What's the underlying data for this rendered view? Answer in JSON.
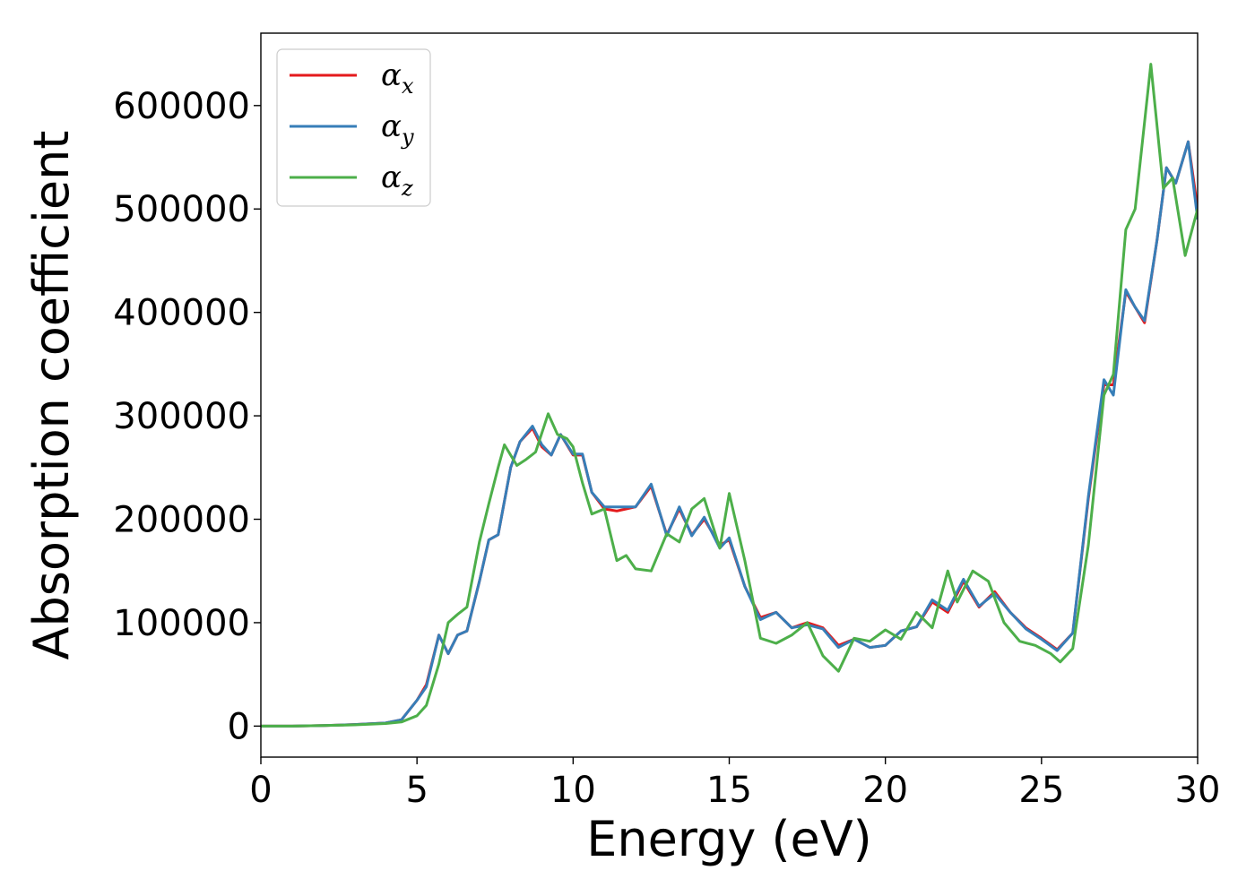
{
  "chart_data": {
    "type": "line",
    "xlabel": "Energy (eV)",
    "ylabel": "Absorption coefficient",
    "xlim": [
      0,
      30
    ],
    "ylim": [
      -30000,
      670000
    ],
    "x_ticks": [
      "0",
      "5",
      "10",
      "15",
      "20",
      "25",
      "30"
    ],
    "y_ticks": [
      "0",
      "100000",
      "200000",
      "300000",
      "400000",
      "500000",
      "600000"
    ],
    "legend_position": "top-left",
    "grid": false,
    "series": [
      {
        "name_main": "α",
        "name_sub": "x",
        "color": "#e41a1c",
        "points": [
          [
            0,
            0
          ],
          [
            1,
            0
          ],
          [
            2,
            500
          ],
          [
            3,
            1500
          ],
          [
            4,
            3000
          ],
          [
            4.5,
            6000
          ],
          [
            5,
            25000
          ],
          [
            5.3,
            40000
          ],
          [
            5.7,
            88000
          ],
          [
            6,
            70000
          ],
          [
            6.3,
            88000
          ],
          [
            6.6,
            92000
          ],
          [
            7,
            140000
          ],
          [
            7.3,
            180000
          ],
          [
            7.6,
            185000
          ],
          [
            8,
            250000
          ],
          [
            8.3,
            275000
          ],
          [
            8.7,
            288000
          ],
          [
            9,
            270000
          ],
          [
            9.3,
            262000
          ],
          [
            9.6,
            282000
          ],
          [
            10,
            262000
          ],
          [
            10.3,
            262000
          ],
          [
            10.6,
            226000
          ],
          [
            11,
            210000
          ],
          [
            11.4,
            208000
          ],
          [
            11.7,
            210000
          ],
          [
            12,
            212000
          ],
          [
            12.5,
            232000
          ],
          [
            13,
            185000
          ],
          [
            13.4,
            210000
          ],
          [
            13.8,
            185000
          ],
          [
            14.2,
            200000
          ],
          [
            14.7,
            175000
          ],
          [
            15,
            180000
          ],
          [
            15.5,
            135000
          ],
          [
            16,
            105000
          ],
          [
            16.5,
            110000
          ],
          [
            17,
            95000
          ],
          [
            17.5,
            100000
          ],
          [
            18,
            95000
          ],
          [
            18.5,
            78000
          ],
          [
            19,
            84000
          ],
          [
            19.5,
            76000
          ],
          [
            20,
            78000
          ],
          [
            20.5,
            92000
          ],
          [
            21,
            96000
          ],
          [
            21.5,
            120000
          ],
          [
            22,
            110000
          ],
          [
            22.5,
            140000
          ],
          [
            23,
            115000
          ],
          [
            23.5,
            130000
          ],
          [
            24,
            110000
          ],
          [
            24.5,
            95000
          ],
          [
            25,
            85000
          ],
          [
            25.5,
            74000
          ],
          [
            26,
            90000
          ],
          [
            26.5,
            220000
          ],
          [
            27,
            330000
          ],
          [
            27.3,
            330000
          ],
          [
            27.7,
            420000
          ],
          [
            28,
            405000
          ],
          [
            28.3,
            390000
          ],
          [
            28.7,
            470000
          ],
          [
            29,
            540000
          ],
          [
            29.3,
            525000
          ],
          [
            29.7,
            565000
          ],
          [
            30,
            500000
          ]
        ]
      },
      {
        "name_main": "α",
        "name_sub": "y",
        "color": "#377eb8",
        "points": [
          [
            0,
            0
          ],
          [
            1,
            0
          ],
          [
            2,
            500
          ],
          [
            3,
            1500
          ],
          [
            4,
            3000
          ],
          [
            4.5,
            6000
          ],
          [
            5,
            25000
          ],
          [
            5.3,
            38000
          ],
          [
            5.7,
            88000
          ],
          [
            6,
            70000
          ],
          [
            6.3,
            88000
          ],
          [
            6.6,
            92000
          ],
          [
            7,
            140000
          ],
          [
            7.3,
            180000
          ],
          [
            7.6,
            185000
          ],
          [
            8,
            250000
          ],
          [
            8.3,
            275000
          ],
          [
            8.7,
            290000
          ],
          [
            9,
            272000
          ],
          [
            9.3,
            262000
          ],
          [
            9.6,
            282000
          ],
          [
            10,
            263000
          ],
          [
            10.3,
            263000
          ],
          [
            10.6,
            226000
          ],
          [
            11,
            212000
          ],
          [
            11.4,
            212000
          ],
          [
            11.7,
            212000
          ],
          [
            12,
            212000
          ],
          [
            12.5,
            234000
          ],
          [
            13,
            184000
          ],
          [
            13.4,
            212000
          ],
          [
            13.8,
            184000
          ],
          [
            14.2,
            202000
          ],
          [
            14.7,
            172000
          ],
          [
            15,
            182000
          ],
          [
            15.5,
            135000
          ],
          [
            16,
            103000
          ],
          [
            16.5,
            110000
          ],
          [
            17,
            95000
          ],
          [
            17.5,
            98000
          ],
          [
            18,
            94000
          ],
          [
            18.5,
            76000
          ],
          [
            19,
            84000
          ],
          [
            19.5,
            76000
          ],
          [
            20,
            78000
          ],
          [
            20.5,
            92000
          ],
          [
            21,
            96000
          ],
          [
            21.5,
            122000
          ],
          [
            22,
            112000
          ],
          [
            22.5,
            142000
          ],
          [
            23,
            116000
          ],
          [
            23.5,
            128000
          ],
          [
            24,
            110000
          ],
          [
            24.5,
            94000
          ],
          [
            25,
            84000
          ],
          [
            25.5,
            73000
          ],
          [
            26,
            90000
          ],
          [
            26.5,
            222000
          ],
          [
            27,
            335000
          ],
          [
            27.3,
            320000
          ],
          [
            27.7,
            422000
          ],
          [
            28,
            405000
          ],
          [
            28.3,
            392000
          ],
          [
            28.7,
            470000
          ],
          [
            29,
            540000
          ],
          [
            29.3,
            525000
          ],
          [
            29.7,
            565000
          ],
          [
            30,
            490000
          ]
        ]
      },
      {
        "name_main": "α",
        "name_sub": "z",
        "color": "#4daf4a",
        "points": [
          [
            0,
            0
          ],
          [
            1,
            0
          ],
          [
            2,
            500
          ],
          [
            3,
            1200
          ],
          [
            4,
            2500
          ],
          [
            4.5,
            4000
          ],
          [
            5,
            10000
          ],
          [
            5.3,
            20000
          ],
          [
            5.7,
            60000
          ],
          [
            6,
            100000
          ],
          [
            6.3,
            108000
          ],
          [
            6.6,
            115000
          ],
          [
            7,
            178000
          ],
          [
            7.3,
            215000
          ],
          [
            7.6,
            250000
          ],
          [
            7.8,
            272000
          ],
          [
            8.2,
            252000
          ],
          [
            8.5,
            258000
          ],
          [
            8.8,
            265000
          ],
          [
            9.2,
            302000
          ],
          [
            9.5,
            282000
          ],
          [
            9.8,
            278000
          ],
          [
            10,
            270000
          ],
          [
            10.3,
            235000
          ],
          [
            10.6,
            205000
          ],
          [
            11,
            210000
          ],
          [
            11.4,
            160000
          ],
          [
            11.7,
            165000
          ],
          [
            12,
            152000
          ],
          [
            12.5,
            150000
          ],
          [
            13,
            186000
          ],
          [
            13.4,
            178000
          ],
          [
            13.8,
            210000
          ],
          [
            14.2,
            220000
          ],
          [
            14.7,
            172000
          ],
          [
            15,
            225000
          ],
          [
            15.5,
            160000
          ],
          [
            16,
            85000
          ],
          [
            16.5,
            80000
          ],
          [
            17,
            88000
          ],
          [
            17.5,
            100000
          ],
          [
            18,
            68000
          ],
          [
            18.5,
            53000
          ],
          [
            19,
            85000
          ],
          [
            19.5,
            82000
          ],
          [
            20,
            93000
          ],
          [
            20.5,
            84000
          ],
          [
            21,
            110000
          ],
          [
            21.5,
            95000
          ],
          [
            22,
            150000
          ],
          [
            22.3,
            120000
          ],
          [
            22.8,
            150000
          ],
          [
            23.3,
            140000
          ],
          [
            23.8,
            100000
          ],
          [
            24.3,
            82000
          ],
          [
            24.8,
            78000
          ],
          [
            25.3,
            70000
          ],
          [
            25.6,
            62000
          ],
          [
            26,
            75000
          ],
          [
            26.5,
            175000
          ],
          [
            27,
            320000
          ],
          [
            27.3,
            340000
          ],
          [
            27.7,
            480000
          ],
          [
            28,
            500000
          ],
          [
            28.5,
            640000
          ],
          [
            28.9,
            520000
          ],
          [
            29.2,
            530000
          ],
          [
            29.6,
            455000
          ],
          [
            30,
            500000
          ]
        ]
      }
    ]
  }
}
